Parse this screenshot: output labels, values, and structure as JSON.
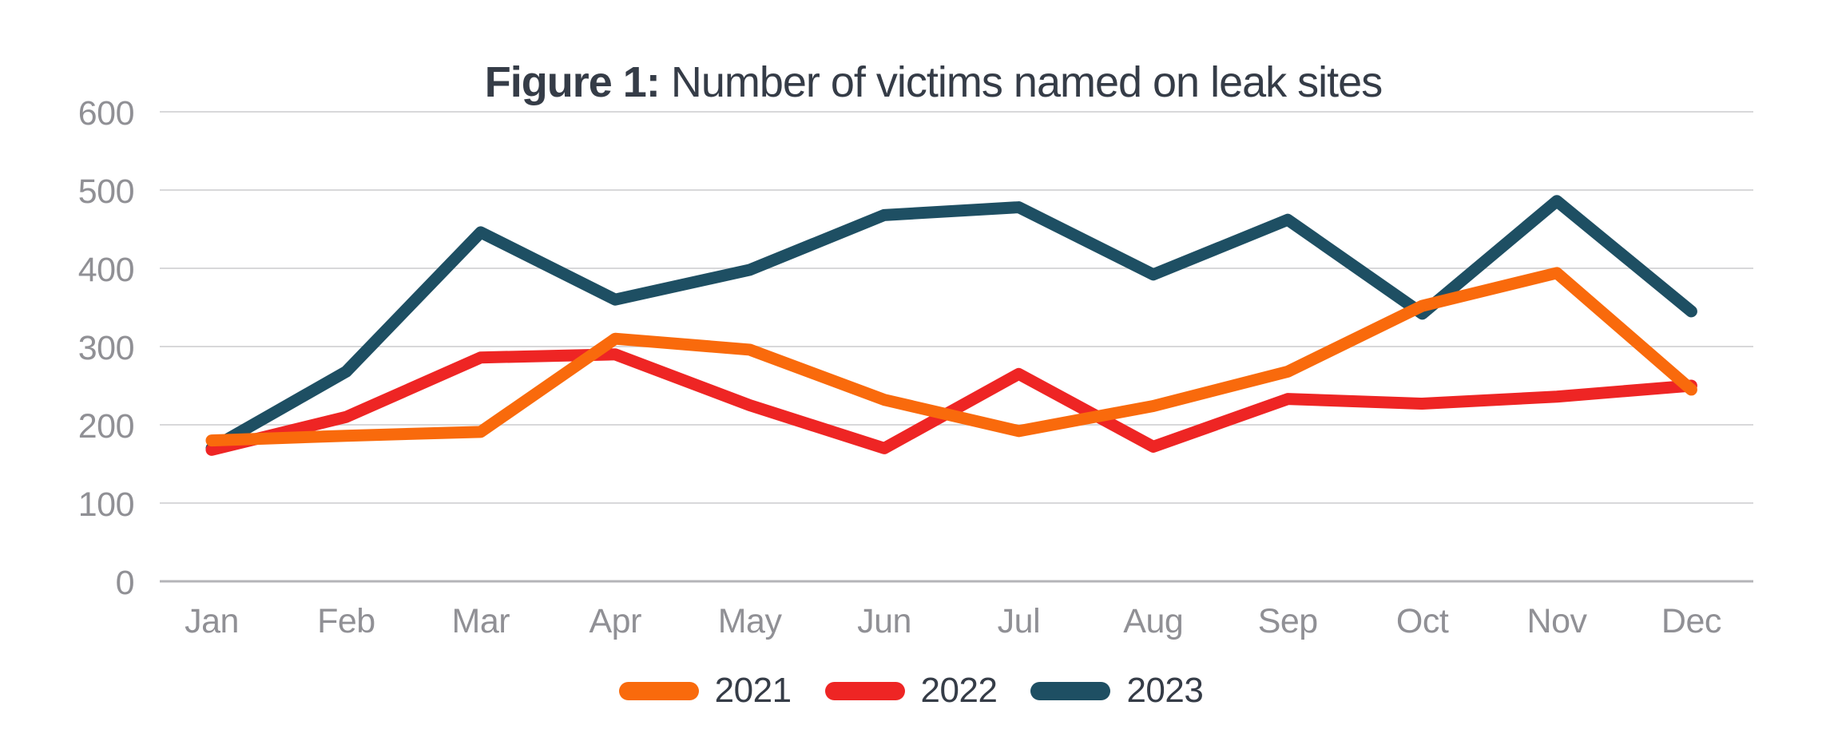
{
  "title": {
    "prefix": "Figure 1:",
    "rest": " Number of victims named on leak sites"
  },
  "chart_data": {
    "type": "line",
    "title": "Figure 1: Number of victims named on leak sites",
    "categories": [
      "Jan",
      "Feb",
      "Mar",
      "Apr",
      "May",
      "Jun",
      "Jul",
      "Aug",
      "Sep",
      "Oct",
      "Nov",
      "Dec"
    ],
    "series": [
      {
        "name": "2021",
        "color": "#F96A0C",
        "values": [
          180,
          186,
          191,
          310,
          296,
          232,
          192,
          224,
          268,
          352,
          394,
          245
        ]
      },
      {
        "name": "2022",
        "color": "#EE2524",
        "values": [
          168,
          210,
          286,
          290,
          225,
          170,
          265,
          172,
          233,
          227,
          236,
          250
        ]
      },
      {
        "name": "2023",
        "color": "#1E4F63",
        "values": [
          170,
          268,
          446,
          360,
          398,
          468,
          478,
          392,
          462,
          342,
          486,
          345
        ]
      }
    ],
    "xlabel": "",
    "ylabel": "",
    "ylim": [
      0,
      600
    ],
    "yticks": [
      0,
      100,
      200,
      300,
      400,
      500,
      600
    ],
    "grid": true,
    "legend_position": "bottom",
    "grid_color": "#D8D8DA",
    "axis_line_color": "#B4B4B8",
    "tick_label_color": "#909095",
    "title_color": "#353C47",
    "background_color": "#FFFFFF"
  }
}
